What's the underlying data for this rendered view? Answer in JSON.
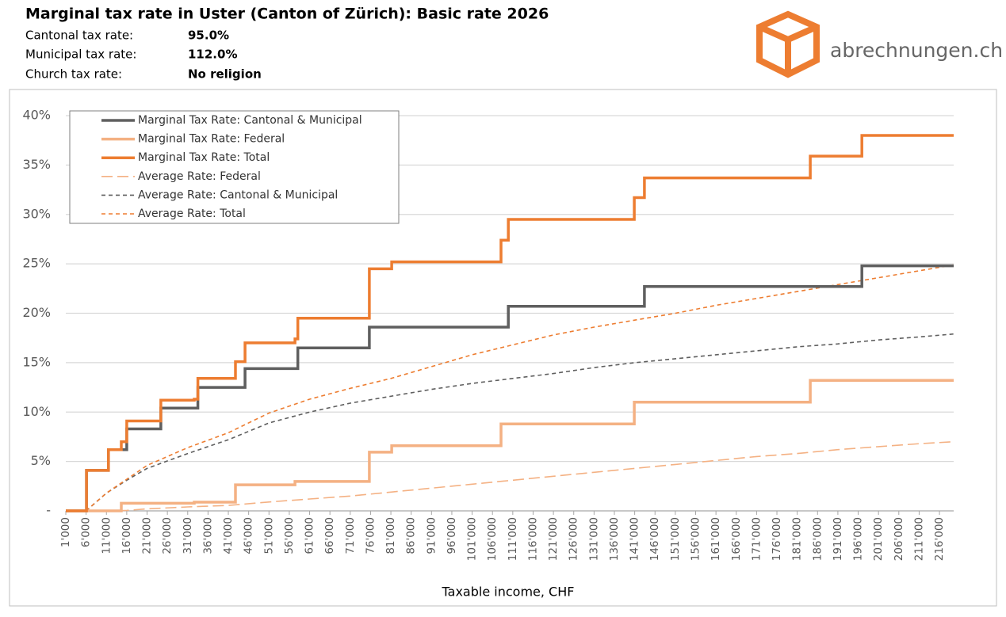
{
  "header": {
    "title": "Marginal tax rate in Uster (Canton of Zürich): Basic rate 2026",
    "rows": [
      {
        "label": "Cantonal tax rate:",
        "value": "95.0%"
      },
      {
        "label": "Municipal tax rate:",
        "value": "112.0%"
      },
      {
        "label": "Church tax rate:",
        "value": "No religion"
      }
    ],
    "logo": "abrechnungen.ch"
  },
  "chart_data": {
    "type": "line",
    "x_label": "Taxable income, CHF",
    "xlim": [
      1000,
      219500
    ],
    "ylim": [
      0,
      40
    ],
    "grid": true,
    "legend": "top-left",
    "yticks": [
      {
        "value": 0,
        "label": "-"
      },
      {
        "value": 5,
        "label": "5%"
      },
      {
        "value": 10,
        "label": "10%"
      },
      {
        "value": 15,
        "label": "15%"
      },
      {
        "value": 20,
        "label": "20%"
      },
      {
        "value": 25,
        "label": "25%"
      },
      {
        "value": 30,
        "label": "30%"
      },
      {
        "value": 35,
        "label": "35%"
      },
      {
        "value": 40,
        "label": "40%"
      }
    ],
    "xticks": [
      {
        "value": 1000,
        "label": "1'000"
      },
      {
        "value": 6000,
        "label": "6'000"
      },
      {
        "value": 11000,
        "label": "11'000"
      },
      {
        "value": 16000,
        "label": "16'000"
      },
      {
        "value": 21000,
        "label": "21'000"
      },
      {
        "value": 26000,
        "label": "26'000"
      },
      {
        "value": 31000,
        "label": "31'000"
      },
      {
        "value": 36000,
        "label": "36'000"
      },
      {
        "value": 41000,
        "label": "41'000"
      },
      {
        "value": 46000,
        "label": "46'000"
      },
      {
        "value": 51000,
        "label": "51'000"
      },
      {
        "value": 56000,
        "label": "56'000"
      },
      {
        "value": 61000,
        "label": "61'000"
      },
      {
        "value": 66000,
        "label": "66'000"
      },
      {
        "value": 71000,
        "label": "71'000"
      },
      {
        "value": 76000,
        "label": "76'000"
      },
      {
        "value": 81000,
        "label": "81'000"
      },
      {
        "value": 86000,
        "label": "86'000"
      },
      {
        "value": 91000,
        "label": "91'000"
      },
      {
        "value": 96000,
        "label": "96'000"
      },
      {
        "value": 101000,
        "label": "101'000"
      },
      {
        "value": 106000,
        "label": "106'000"
      },
      {
        "value": 111000,
        "label": "111'000"
      },
      {
        "value": 116000,
        "label": "116'000"
      },
      {
        "value": 121000,
        "label": "121'000"
      },
      {
        "value": 126000,
        "label": "126'000"
      },
      {
        "value": 131000,
        "label": "131'000"
      },
      {
        "value": 136000,
        "label": "136'000"
      },
      {
        "value": 141000,
        "label": "141'000"
      },
      {
        "value": 146000,
        "label": "146'000"
      },
      {
        "value": 151000,
        "label": "151'000"
      },
      {
        "value": 156000,
        "label": "156'000"
      },
      {
        "value": 161000,
        "label": "161'000"
      },
      {
        "value": 166000,
        "label": "166'000"
      },
      {
        "value": 171000,
        "label": "171'000"
      },
      {
        "value": 176000,
        "label": "176'000"
      },
      {
        "value": 181000,
        "label": "181'000"
      },
      {
        "value": 186000,
        "label": "186'000"
      },
      {
        "value": 191000,
        "label": "191'000"
      },
      {
        "value": 196000,
        "label": "196'000"
      },
      {
        "value": 201000,
        "label": "201'000"
      },
      {
        "value": 206000,
        "label": "206'000"
      },
      {
        "value": 211000,
        "label": "211'000"
      },
      {
        "value": 216000,
        "label": "216'000"
      }
    ],
    "series": [
      {
        "name": "Marginal Tax Rate: Cantonal & Municipal",
        "color": "#5f5f5f",
        "style": "solid",
        "x": [
          1000,
          6100,
          6100,
          11500,
          11500,
          16000,
          16000,
          24400,
          24400,
          33500,
          33500,
          45100,
          45100,
          58100,
          58100,
          75700,
          75700,
          109900,
          109900,
          143400,
          143400,
          196900,
          196900,
          219500
        ],
        "values": [
          0,
          0,
          4.1,
          4.1,
          6.2,
          6.2,
          8.3,
          8.3,
          10.4,
          10.4,
          12.5,
          12.5,
          14.4,
          14.4,
          16.5,
          16.5,
          18.6,
          18.6,
          20.7,
          20.7,
          22.7,
          22.7,
          24.8,
          24.8
        ]
      },
      {
        "name": "Marginal Tax Rate: Federal",
        "color": "#f4b183",
        "style": "solid",
        "x": [
          1000,
          14650,
          14650,
          32600,
          32600,
          42750,
          42750,
          57400,
          57400,
          75700,
          75700,
          81200,
          81200,
          108100,
          108100,
          140900,
          140900,
          184200,
          184200,
          219500
        ],
        "values": [
          0,
          0,
          0.77,
          0.77,
          0.88,
          0.88,
          2.64,
          2.64,
          2.97,
          2.97,
          5.94,
          5.94,
          6.6,
          6.6,
          8.8,
          8.8,
          11,
          11,
          13.2,
          13.2
        ]
      },
      {
        "name": "Marginal Tax Rate: Total",
        "color": "#ed7d31",
        "style": "solid",
        "x": [
          1000,
          6100,
          6100,
          11500,
          11500,
          14650,
          14650,
          16000,
          16000,
          24400,
          24400,
          32600,
          32600,
          33500,
          33500,
          42750,
          42750,
          45100,
          45100,
          57400,
          57400,
          58100,
          58100,
          75700,
          75700,
          81200,
          81200,
          108100,
          108100,
          109900,
          109900,
          140900,
          140900,
          143400,
          143400,
          184200,
          184200,
          196900,
          196900,
          219500
        ],
        "values": [
          0,
          0,
          4.1,
          4.1,
          6.2,
          6.2,
          7,
          7,
          9.1,
          9.1,
          11.2,
          11.2,
          11.3,
          11.3,
          13.4,
          13.4,
          15.1,
          15.1,
          17,
          17,
          17.4,
          17.4,
          19.5,
          19.5,
          24.5,
          24.5,
          25.2,
          25.2,
          27.4,
          27.4,
          29.5,
          29.5,
          31.7,
          31.7,
          33.7,
          33.7,
          35.9,
          35.9,
          38,
          38
        ]
      },
      {
        "name": "Average Rate: Federal",
        "color": "#f4b183",
        "style": "long-dash",
        "x": [
          6000,
          11000,
          16000,
          21000,
          31000,
          41000,
          51000,
          61000,
          71000,
          81000,
          91000,
          101000,
          111000,
          121000,
          131000,
          141000,
          151000,
          161000,
          171000,
          181000,
          191000,
          201000,
          211000,
          219500
        ],
        "values": [
          0,
          0,
          0.05,
          0.2,
          0.4,
          0.55,
          0.9,
          1.2,
          1.5,
          1.9,
          2.3,
          2.7,
          3.1,
          3.5,
          3.9,
          4.3,
          4.7,
          5.1,
          5.5,
          5.8,
          6.2,
          6.5,
          6.8,
          7.0
        ]
      },
      {
        "name": "Average Rate: Cantonal & Municipal",
        "color": "#5f5f5f",
        "style": "dash",
        "x": [
          6000,
          11000,
          16000,
          21000,
          31000,
          41000,
          51000,
          61000,
          71000,
          81000,
          91000,
          101000,
          111000,
          121000,
          131000,
          141000,
          151000,
          161000,
          171000,
          181000,
          191000,
          201000,
          211000,
          219500
        ],
        "values": [
          0,
          1.8,
          3.1,
          4.3,
          5.8,
          7.2,
          8.9,
          10.0,
          10.9,
          11.6,
          12.3,
          12.9,
          13.4,
          13.9,
          14.5,
          15.0,
          15.4,
          15.8,
          16.2,
          16.6,
          16.9,
          17.3,
          17.6,
          17.9
        ]
      },
      {
        "name": "Average Rate: Total",
        "color": "#ed7d31",
        "style": "dash",
        "x": [
          6000,
          11000,
          16000,
          21000,
          31000,
          41000,
          51000,
          61000,
          71000,
          81000,
          91000,
          101000,
          111000,
          121000,
          131000,
          141000,
          151000,
          161000,
          171000,
          181000,
          191000,
          201000,
          211000,
          219500
        ],
        "values": [
          0,
          1.8,
          3.2,
          4.6,
          6.4,
          7.9,
          9.9,
          11.3,
          12.4,
          13.4,
          14.6,
          15.8,
          16.8,
          17.8,
          18.6,
          19.3,
          20.0,
          20.8,
          21.5,
          22.2,
          22.9,
          23.6,
          24.3,
          24.9
        ]
      }
    ]
  }
}
